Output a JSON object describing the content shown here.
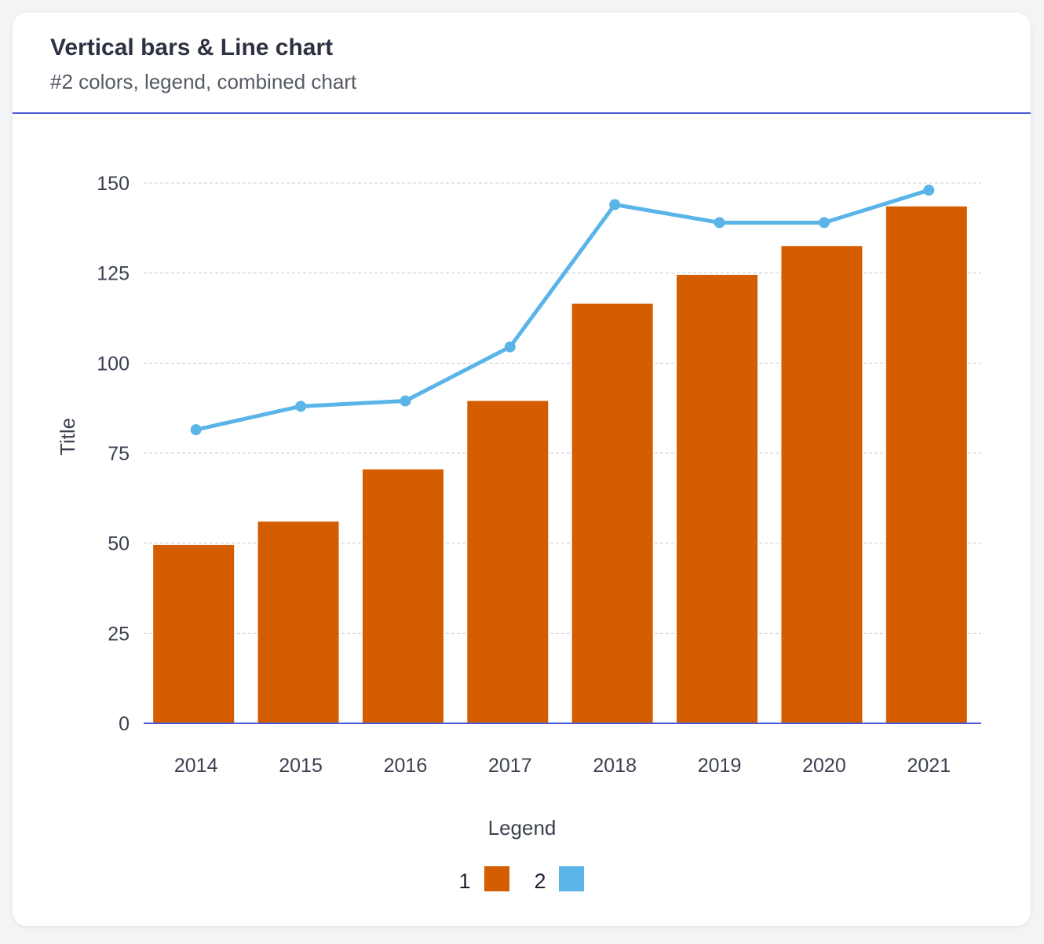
{
  "header": {
    "title": "Vertical bars & Line chart",
    "subtitle": "#2 colors, legend, combined chart"
  },
  "chart_data": {
    "type": "bar",
    "categories": [
      "2014",
      "2015",
      "2016",
      "2017",
      "2018",
      "2019",
      "2020",
      "2021"
    ],
    "series": [
      {
        "name": "1",
        "type": "bar",
        "color": "#d45d00",
        "values": [
          49.5,
          56,
          70.5,
          89.5,
          116.5,
          124.5,
          132.5,
          143.5
        ]
      },
      {
        "name": "2",
        "type": "line",
        "color": "#5ab4e8",
        "values": [
          81.5,
          88,
          89.5,
          104.5,
          144,
          139,
          139,
          148
        ]
      }
    ],
    "ylabel": "Title",
    "xlabel": "",
    "ylim": [
      0,
      150
    ],
    "yticks": [
      0,
      25,
      50,
      75,
      100,
      125,
      150
    ],
    "grid": true,
    "legend": {
      "title": "Legend",
      "position": "bottom"
    },
    "colors": {
      "axis": "#4b5bd6",
      "grid": "#c8ccd4"
    }
  }
}
